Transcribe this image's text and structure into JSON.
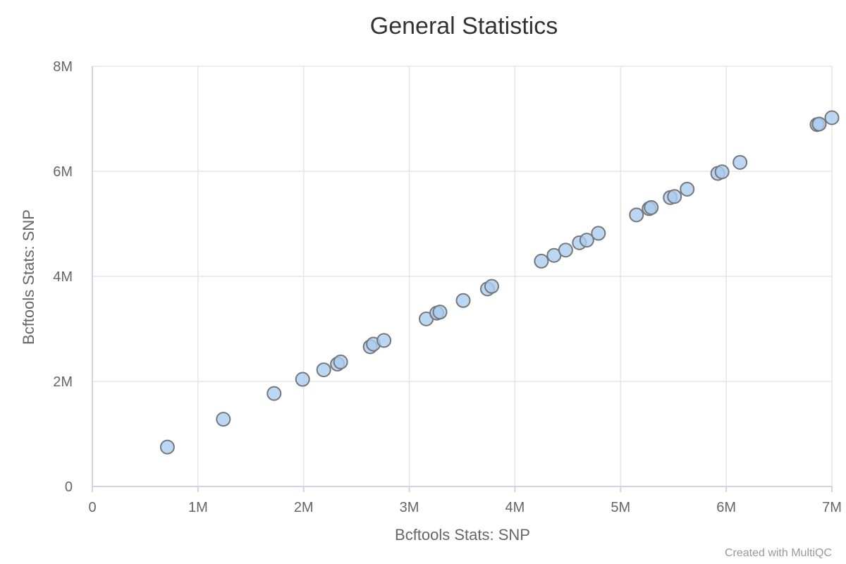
{
  "chart_data": {
    "type": "scatter",
    "title": "General Statistics",
    "xlabel": "Bcftools Stats: SNP",
    "ylabel": "Bcftools Stats: SNP",
    "xlim": [
      0,
      7000000
    ],
    "ylim": [
      0,
      8000000
    ],
    "xticks": [
      {
        "value": 0,
        "label": "0"
      },
      {
        "value": 1000000,
        "label": "1M"
      },
      {
        "value": 2000000,
        "label": "2M"
      },
      {
        "value": 3000000,
        "label": "3M"
      },
      {
        "value": 4000000,
        "label": "4M"
      },
      {
        "value": 5000000,
        "label": "5M"
      },
      {
        "value": 6000000,
        "label": "6M"
      },
      {
        "value": 7000000,
        "label": "7M"
      }
    ],
    "yticks": [
      {
        "value": 0,
        "label": "0"
      },
      {
        "value": 2000000,
        "label": "2M"
      },
      {
        "value": 4000000,
        "label": "4M"
      },
      {
        "value": 6000000,
        "label": "6M"
      },
      {
        "value": 8000000,
        "label": "8M"
      }
    ],
    "grid": true,
    "legend": "none",
    "marker_color": "#a9cdf0",
    "marker_edge_color": "#777777",
    "points": [
      {
        "x": 710000,
        "y": 750000
      },
      {
        "x": 1240000,
        "y": 1280000
      },
      {
        "x": 1720000,
        "y": 1770000
      },
      {
        "x": 1990000,
        "y": 2040000
      },
      {
        "x": 2190000,
        "y": 2220000
      },
      {
        "x": 2320000,
        "y": 2330000
      },
      {
        "x": 2350000,
        "y": 2370000
      },
      {
        "x": 2630000,
        "y": 2660000
      },
      {
        "x": 2660000,
        "y": 2710000
      },
      {
        "x": 2760000,
        "y": 2780000
      },
      {
        "x": 3160000,
        "y": 3190000
      },
      {
        "x": 3260000,
        "y": 3300000
      },
      {
        "x": 3290000,
        "y": 3320000
      },
      {
        "x": 3510000,
        "y": 3540000
      },
      {
        "x": 3740000,
        "y": 3760000
      },
      {
        "x": 3780000,
        "y": 3810000
      },
      {
        "x": 4250000,
        "y": 4290000
      },
      {
        "x": 4370000,
        "y": 4400000
      },
      {
        "x": 4480000,
        "y": 4500000
      },
      {
        "x": 4610000,
        "y": 4640000
      },
      {
        "x": 4680000,
        "y": 4690000
      },
      {
        "x": 4790000,
        "y": 4820000
      },
      {
        "x": 5150000,
        "y": 5170000
      },
      {
        "x": 5270000,
        "y": 5290000
      },
      {
        "x": 5290000,
        "y": 5310000
      },
      {
        "x": 5470000,
        "y": 5500000
      },
      {
        "x": 5510000,
        "y": 5520000
      },
      {
        "x": 5630000,
        "y": 5660000
      },
      {
        "x": 5920000,
        "y": 5960000
      },
      {
        "x": 5960000,
        "y": 5990000
      },
      {
        "x": 6130000,
        "y": 6170000
      },
      {
        "x": 6860000,
        "y": 6890000
      },
      {
        "x": 6880000,
        "y": 6900000
      },
      {
        "x": 7000000,
        "y": 7020000
      }
    ],
    "credits": "Created with MultiQC"
  }
}
